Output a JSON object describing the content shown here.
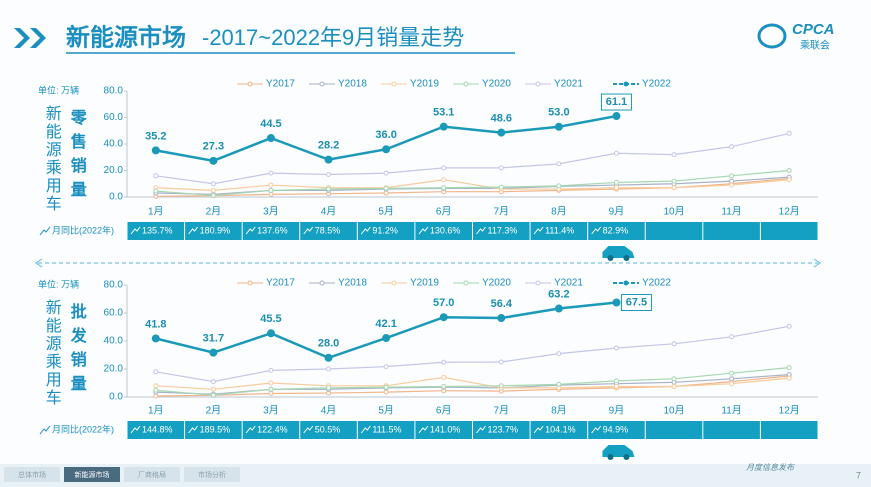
{
  "header": {
    "title_main": "新能源市场",
    "title_rest": "-2017~2022年9月销量走势",
    "logo": "CPCA",
    "logo_sub": "乘联会"
  },
  "chart_data": [
    {
      "type": "line",
      "unit": "单位: 万辆",
      "side_label": "新能源乘用车",
      "metric_label": "零售销量",
      "categories": [
        "1月",
        "2月",
        "3月",
        "4月",
        "5月",
        "6月",
        "7月",
        "8月",
        "9月",
        "10月",
        "11月",
        "12月"
      ],
      "ylim": [
        0,
        80
      ],
      "yticks": [
        {
          "value": 0,
          "label": "0.0"
        },
        {
          "value": 20,
          "label": "20.0"
        },
        {
          "value": 40,
          "label": "40.0"
        },
        {
          "value": 60,
          "label": "60.0"
        },
        {
          "value": 80,
          "label": "80.0"
        }
      ],
      "series": [
        {
          "name": "Y2017",
          "color": "#f2b48a",
          "values": [
            0.5,
            1,
            2,
            2.5,
            3,
            4,
            4,
            5,
            6,
            7,
            10,
            14
          ]
        },
        {
          "name": "Y2018",
          "color": "#a9b3c6",
          "values": [
            3,
            2,
            5,
            5,
            6,
            6.5,
            6.5,
            8,
            9,
            10,
            12,
            15
          ]
        },
        {
          "name": "Y2019",
          "color": "#f7cc9c",
          "values": [
            7,
            5,
            9,
            7,
            7,
            13,
            6,
            6,
            7,
            7,
            9,
            13
          ]
        },
        {
          "name": "Y2020",
          "color": "#a6d8b2",
          "values": [
            4.5,
            1.1,
            5,
            6,
            6.5,
            7,
            7.5,
            8.4,
            11,
            12,
            16,
            20
          ]
        },
        {
          "name": "Y2021",
          "color": "#c3c6e8",
          "values": [
            16,
            10,
            18,
            17,
            18,
            22,
            22,
            25,
            33,
            32,
            38,
            48
          ]
        },
        {
          "name": "Y2022",
          "color": "#1a9ab8",
          "values": [
            35.2,
            27.3,
            44.5,
            28.2,
            36.0,
            53.1,
            48.6,
            53.0,
            61.1,
            null,
            null,
            null
          ],
          "value_labels": [
            "35.2",
            "27.3",
            "44.5",
            "28.2",
            "36.0",
            "53.1",
            "48.6",
            "53.0",
            "61.1",
            null,
            null,
            null
          ]
        }
      ],
      "yoy_label": "月同比(2022年)",
      "yoy": [
        "135.7%",
        "180.9%",
        "137.6%",
        "78.5%",
        "91.2%",
        "130.6%",
        "117.3%",
        "111.4%",
        "82.9%"
      ]
    },
    {
      "type": "line",
      "unit": "单位: 万辆",
      "side_label": "新能源乘用车",
      "metric_label": "批发销量",
      "categories": [
        "1月",
        "2月",
        "3月",
        "4月",
        "5月",
        "6月",
        "7月",
        "8月",
        "9月",
        "10月",
        "11月",
        "12月"
      ],
      "ylim": [
        0,
        80
      ],
      "yticks": [
        {
          "value": 0,
          "label": "0.0"
        },
        {
          "value": 20,
          "label": "20.0"
        },
        {
          "value": 40,
          "label": "40.0"
        },
        {
          "value": 60,
          "label": "60.0"
        },
        {
          "value": 80,
          "label": "80.0"
        }
      ],
      "series": [
        {
          "name": "Y2017",
          "color": "#f2b48a",
          "values": [
            0.7,
            1.2,
            2.5,
            2.8,
            3.5,
            4.5,
            4.2,
            5.5,
            6.5,
            7.5,
            11,
            15
          ]
        },
        {
          "name": "Y2018",
          "color": "#a9b3c6",
          "values": [
            3.5,
            2,
            5.5,
            5.5,
            6.5,
            7,
            6.5,
            8.5,
            9.5,
            10.5,
            13,
            16
          ]
        },
        {
          "name": "Y2019",
          "color": "#f7cc9c",
          "values": [
            8,
            5.5,
            10,
            8,
            8,
            14,
            6.5,
            6.5,
            7.5,
            7.5,
            9.5,
            13.5
          ]
        },
        {
          "name": "Y2020",
          "color": "#a6d8b2",
          "values": [
            4.8,
            1.3,
            5.5,
            6.5,
            7,
            7.5,
            8,
            9,
            11.5,
            13,
            17,
            21
          ]
        },
        {
          "name": "Y2021",
          "color": "#c3c6e8",
          "values": [
            18,
            11,
            19,
            20,
            21.7,
            24.8,
            25,
            31,
            35,
            38,
            43,
            50.5
          ]
        },
        {
          "name": "Y2022",
          "color": "#1a9ab8",
          "values": [
            41.8,
            31.7,
            45.5,
            28.0,
            42.1,
            57.0,
            56.4,
            63.2,
            67.5,
            null,
            null,
            null
          ],
          "value_labels": [
            "41.8",
            "31.7",
            "45.5",
            "28.0",
            "42.1",
            "57.0",
            "56.4",
            "63.2",
            "67.5",
            null,
            null,
            null
          ]
        }
      ],
      "yoy_label": "月同比(2022年)",
      "yoy": [
        "144.8%",
        "189.5%",
        "122.4%",
        "50.5%",
        "111.5%",
        "141.0%",
        "123.7%",
        "104.1%",
        "94.9%"
      ]
    }
  ],
  "footer": {
    "tabs": [
      "总体市场",
      "新能源市场",
      "厂商格局",
      "市场分析"
    ],
    "release": "月度信息发布",
    "page": "7"
  }
}
